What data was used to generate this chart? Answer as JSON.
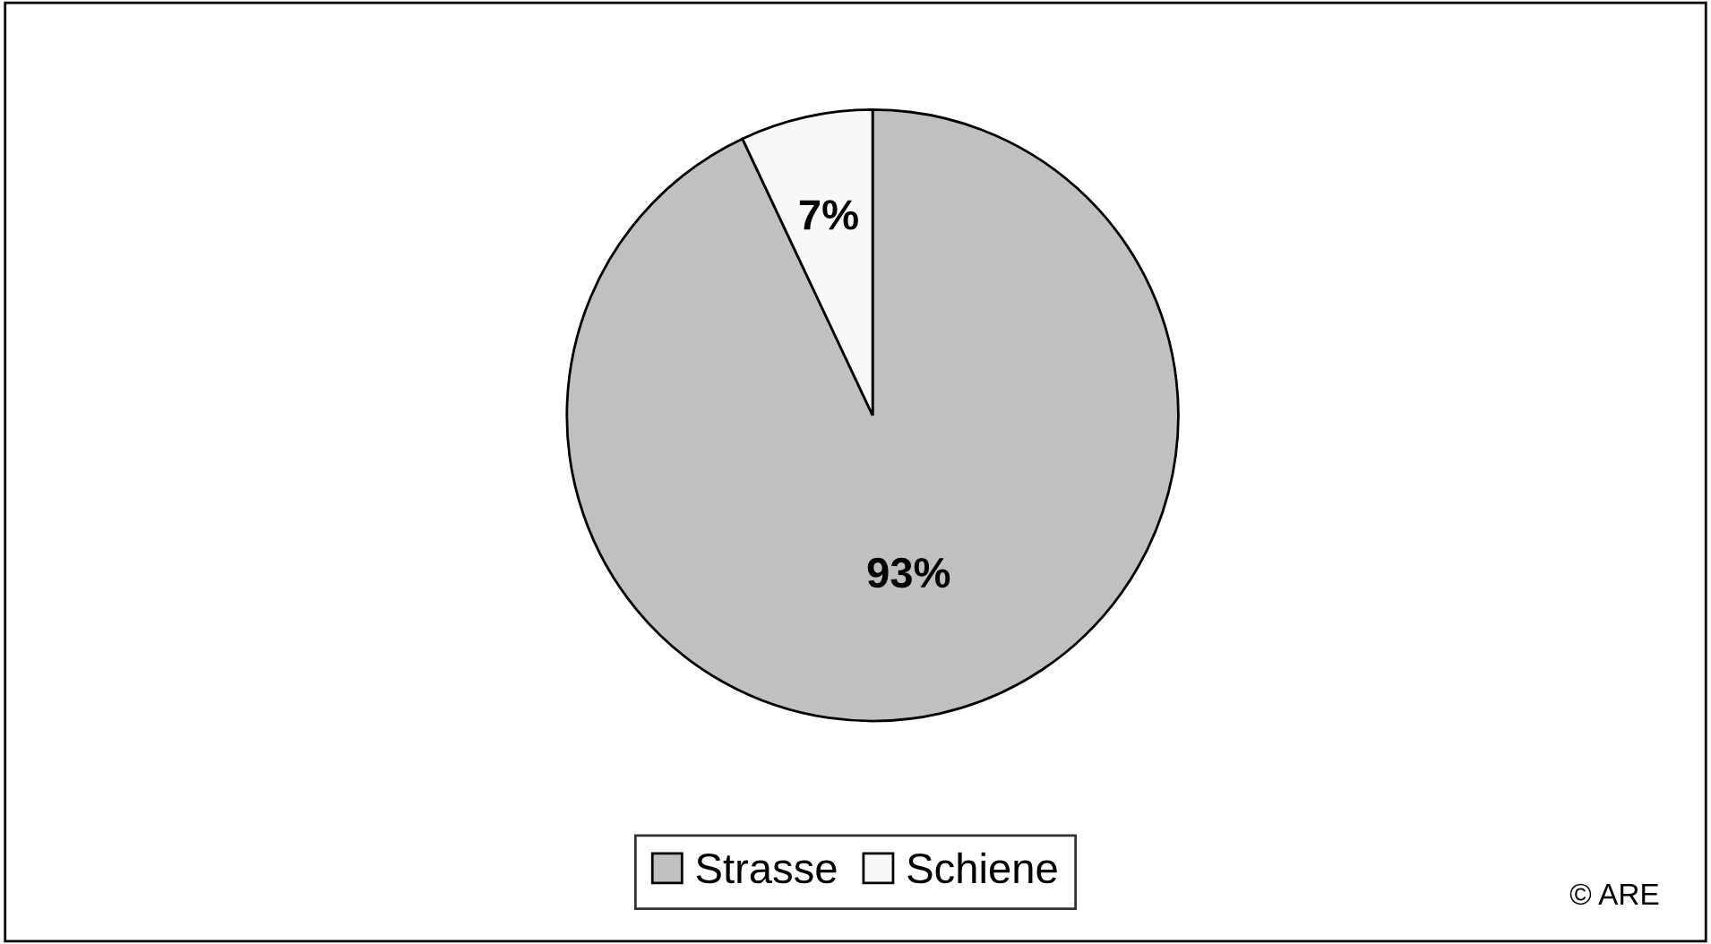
{
  "chart_data": {
    "type": "pie",
    "categories": [
      "Strasse",
      "Schiene"
    ],
    "values": [
      93,
      7
    ],
    "colors": [
      "#c0c0c0",
      "#f8f8f8"
    ],
    "value_labels": [
      "93%",
      "7%"
    ],
    "legend": "bottom",
    "annotations": [
      "© ARE"
    ]
  }
}
